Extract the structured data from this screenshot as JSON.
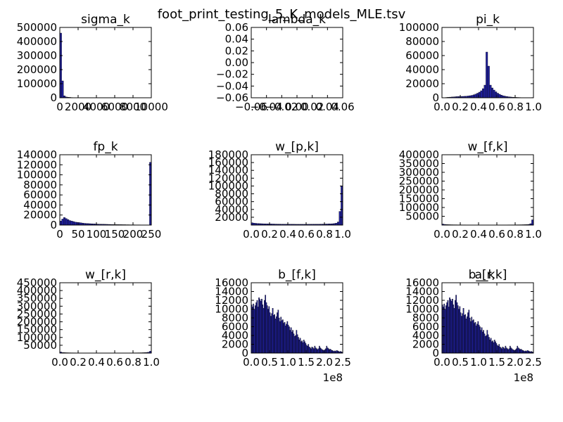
{
  "figure": {
    "title": "foot_print_testing_5_K_models_MLE.tsv",
    "bar_color": "#1f1f99"
  },
  "chart_data": [
    {
      "type": "bar",
      "id": "sigma_k",
      "title": "sigma_k",
      "xlim": [
        0,
        10000
      ],
      "ylim": [
        0,
        500000
      ],
      "xticks": [
        "0",
        "2000",
        "4000",
        "6000",
        "8000",
        "10000"
      ],
      "yticks": [
        "0",
        "100000",
        "200000",
        "300000",
        "400000",
        "500000"
      ],
      "bins": {
        "start": 0,
        "width": 200,
        "values": [
          460000,
          120000,
          14000,
          6000,
          4000,
          3000,
          2000,
          1500,
          1200,
          1000,
          800,
          700,
          600,
          500,
          500,
          400,
          400,
          300,
          300,
          300,
          200,
          200,
          200,
          200,
          200,
          150,
          150,
          150,
          150,
          150,
          100,
          100,
          100,
          100,
          100,
          100,
          100,
          100,
          100,
          100,
          100,
          100,
          100,
          100,
          100,
          100,
          100,
          100,
          100,
          100
        ]
      }
    },
    {
      "type": "bar",
      "id": "lambda_k",
      "title": "lambda_k",
      "xlim": [
        -0.06,
        0.06
      ],
      "ylim": [
        -0.06,
        0.06
      ],
      "xticks": [
        "−0.06",
        "−0.04",
        "−0.02",
        "0.00",
        "0.02",
        "0.04",
        "0.06"
      ],
      "yticks": [
        "−0.06",
        "−0.04",
        "−0.02",
        "0.00",
        "0.02",
        "0.04",
        "0.06"
      ],
      "bins": {
        "start": -0.06,
        "width": 0.01,
        "values": []
      }
    },
    {
      "type": "bar",
      "id": "pi_k",
      "title": "pi_k",
      "xlim": [
        0,
        1
      ],
      "ylim": [
        0,
        100000
      ],
      "xticks": [
        "0.0",
        "0.2",
        "0.4",
        "0.6",
        "0.8",
        "1.0"
      ],
      "yticks": [
        "0",
        "20000",
        "40000",
        "60000",
        "80000",
        "100000"
      ],
      "bins": {
        "start": 0,
        "width": 0.02,
        "values": [
          200,
          300,
          500,
          700,
          900,
          1100,
          1300,
          1500,
          1700,
          1800,
          1900,
          2000,
          2100,
          2300,
          2600,
          3000,
          3500,
          4200,
          5200,
          6500,
          8000,
          10000,
          13000,
          18000,
          65000,
          45000,
          18000,
          14000,
          11000,
          8500,
          6500,
          5000,
          3800,
          2900,
          2200,
          1800,
          1400,
          1100,
          900,
          700,
          600,
          500,
          400,
          300,
          250,
          200,
          150,
          100,
          100,
          400
        ]
      }
    },
    {
      "type": "bar",
      "id": "fp_k",
      "title": "fp_k",
      "xlim": [
        0,
        250
      ],
      "ylim": [
        0,
        140000
      ],
      "xticks": [
        "0",
        "50",
        "100",
        "150",
        "200",
        "250"
      ],
      "yticks": [
        "0",
        "20000",
        "40000",
        "60000",
        "80000",
        "100000",
        "120000",
        "140000"
      ],
      "bins": {
        "start": 0,
        "width": 5,
        "values": [
          8000,
          12000,
          15000,
          13000,
          11000,
          9000,
          8000,
          7000,
          6000,
          5500,
          5000,
          4500,
          4000,
          3500,
          3200,
          3000,
          2800,
          2600,
          2400,
          2200,
          2000,
          1900,
          1800,
          1700,
          1600,
          1500,
          1400,
          1300,
          1200,
          1100,
          1000,
          1000,
          900,
          900,
          800,
          800,
          700,
          700,
          600,
          600,
          600,
          500,
          500,
          500,
          400,
          400,
          400,
          300,
          300,
          125000
        ]
      }
    },
    {
      "type": "bar",
      "id": "w_pk",
      "title": "w_[p,k]",
      "xlim": [
        0,
        1
      ],
      "ylim": [
        0,
        180000
      ],
      "xticks": [
        "0.0",
        "0.2",
        "0.4",
        "0.6",
        "0.8",
        "1.0"
      ],
      "yticks": [
        "20000",
        "40000",
        "60000",
        "80000",
        "100000",
        "120000",
        "140000",
        "160000",
        "180000"
      ],
      "bins": {
        "start": 0,
        "width": 0.02,
        "values": [
          6000,
          5000,
          4500,
          4000,
          3800,
          3600,
          3400,
          3200,
          3100,
          3000,
          2900,
          2800,
          2700,
          2600,
          2500,
          2500,
          2400,
          2400,
          2300,
          2300,
          2200,
          2200,
          2100,
          2100,
          2000,
          2000,
          2000,
          2000,
          2000,
          2000,
          2000,
          2100,
          2100,
          2200,
          2200,
          2300,
          2300,
          2400,
          2500,
          2600,
          2700,
          2800,
          3000,
          3200,
          3500,
          4000,
          5000,
          8000,
          35000,
          100000
        ]
      }
    },
    {
      "type": "bar",
      "id": "w_fk",
      "title": "w_[f,k]",
      "xlim": [
        0,
        1
      ],
      "ylim": [
        0,
        400000
      ],
      "xticks": [
        "0.0",
        "0.2",
        "0.4",
        "0.6",
        "0.8",
        "1.0"
      ],
      "yticks": [
        "50000",
        "100000",
        "150000",
        "200000",
        "250000",
        "300000",
        "350000",
        "400000"
      ],
      "bins": {
        "start": 0,
        "width": 0.02,
        "values": [
          6000,
          4000,
          3000,
          2500,
          2200,
          2000,
          1800,
          1700,
          1600,
          1500,
          1500,
          1400,
          1400,
          1300,
          1300,
          1300,
          1200,
          1200,
          1200,
          1200,
          1200,
          1200,
          1200,
          1200,
          1200,
          1200,
          1200,
          1200,
          1200,
          1200,
          1200,
          1200,
          1200,
          1300,
          1300,
          1300,
          1400,
          1400,
          1500,
          1500,
          1600,
          1700,
          1800,
          2000,
          2200,
          2500,
          3000,
          4000,
          8000,
          30000
        ]
      }
    },
    {
      "type": "bar",
      "id": "w_rk",
      "title": "w_[r,k]",
      "xlim": [
        0,
        1
      ],
      "ylim": [
        0,
        450000
      ],
      "xticks": [
        "0.0",
        "0.2",
        "0.4",
        "0.6",
        "0.8",
        "1.0"
      ],
      "yticks": [
        "50000",
        "100000",
        "150000",
        "200000",
        "250000",
        "300000",
        "350000",
        "400000",
        "450000"
      ],
      "bins": {
        "start": 0,
        "width": 0.02,
        "values": [
          7000,
          4000,
          3000,
          2500,
          2200,
          2000,
          1800,
          1700,
          1600,
          1500,
          1500,
          1400,
          1400,
          1300,
          1300,
          1300,
          1200,
          1200,
          1200,
          1200,
          1200,
          1200,
          1200,
          1200,
          1200,
          1200,
          1200,
          1200,
          1200,
          1200,
          1200,
          1200,
          1200,
          1300,
          1300,
          1300,
          1400,
          1400,
          1500,
          1500,
          1600,
          1700,
          1800,
          2000,
          2200,
          2500,
          3000,
          4000,
          6000,
          12000
        ]
      }
    },
    {
      "type": "bar",
      "id": "b_fk",
      "title": "b_[f,k]",
      "xlim": [
        0,
        250000000
      ],
      "ylim": [
        0,
        16000
      ],
      "xticks": [
        "0.0",
        "0.5",
        "1.0",
        "1.5",
        "2.0",
        "2.5"
      ],
      "offset_label": "1e8",
      "yticks": [
        "0",
        "2000",
        "4000",
        "6000",
        "8000",
        "10000",
        "12000",
        "14000",
        "16000"
      ],
      "bins": {
        "start": 0,
        "width": 2500000,
        "values": [
          11000,
          10500,
          11200,
          10000,
          10800,
          11500,
          12000,
          10500,
          12600,
          12200,
          11800,
          12300,
          11000,
          10200,
          12000,
          13200,
          11500,
          10800,
          10000,
          10600,
          9200,
          8400,
          9000,
          10200,
          8600,
          8800,
          7800,
          8300,
          9200,
          9800,
          8000,
          7200,
          8200,
          7400,
          7600,
          6800,
          7000,
          6200,
          6600,
          7200,
          6400,
          6000,
          5200,
          5800,
          4800,
          5200,
          4400,
          3800,
          4000,
          5200,
          4200,
          3600,
          3000,
          3400,
          2600,
          2800,
          2400,
          3000,
          2600,
          2200,
          1800,
          1600,
          2000,
          1400,
          1200,
          1000,
          1400,
          1200,
          1000,
          1600,
          1200,
          1000,
          800,
          1000,
          1600,
          1200,
          1000,
          800,
          700,
          600,
          800,
          1000,
          1600,
          1200,
          1000,
          800,
          900,
          700,
          600,
          500,
          400,
          500,
          400,
          600,
          500,
          400,
          300,
          400,
          300,
          200
        ]
      }
    },
    {
      "type": "bar",
      "id": "b_rk",
      "title": "b_[r,k]",
      "overlap_title": "a_k",
      "xlim": [
        0,
        250000000
      ],
      "ylim": [
        0,
        16000
      ],
      "xticks": [
        "0.0",
        "0.5",
        "1.0",
        "1.5",
        "2.0",
        "2.5"
      ],
      "offset_label": "1e8",
      "yticks": [
        "0",
        "2000",
        "4000",
        "6000",
        "8000",
        "10000",
        "12000",
        "14000",
        "16000"
      ],
      "bins": {
        "start": 0,
        "width": 2500000,
        "values": [
          11000,
          10500,
          11200,
          10000,
          10800,
          11500,
          12000,
          10500,
          12600,
          12200,
          11800,
          12300,
          11000,
          10200,
          12000,
          13200,
          11500,
          10800,
          10000,
          10600,
          9200,
          8400,
          9000,
          10200,
          8600,
          8800,
          7800,
          8300,
          9200,
          9800,
          8000,
          7200,
          8200,
          7400,
          7600,
          6800,
          7000,
          6200,
          6600,
          7200,
          6400,
          6000,
          5200,
          5800,
          4800,
          5200,
          4400,
          3800,
          4000,
          5200,
          4200,
          3600,
          3000,
          3400,
          2600,
          2800,
          2400,
          3000,
          2600,
          2200,
          1800,
          1600,
          2000,
          1400,
          1200,
          1000,
          1400,
          1200,
          1000,
          1600,
          1200,
          1000,
          800,
          1000,
          1600,
          1200,
          1000,
          800,
          700,
          600,
          800,
          1000,
          1600,
          1200,
          1000,
          800,
          900,
          700,
          600,
          500,
          400,
          500,
          400,
          600,
          500,
          400,
          300,
          400,
          300,
          200
        ]
      }
    }
  ]
}
